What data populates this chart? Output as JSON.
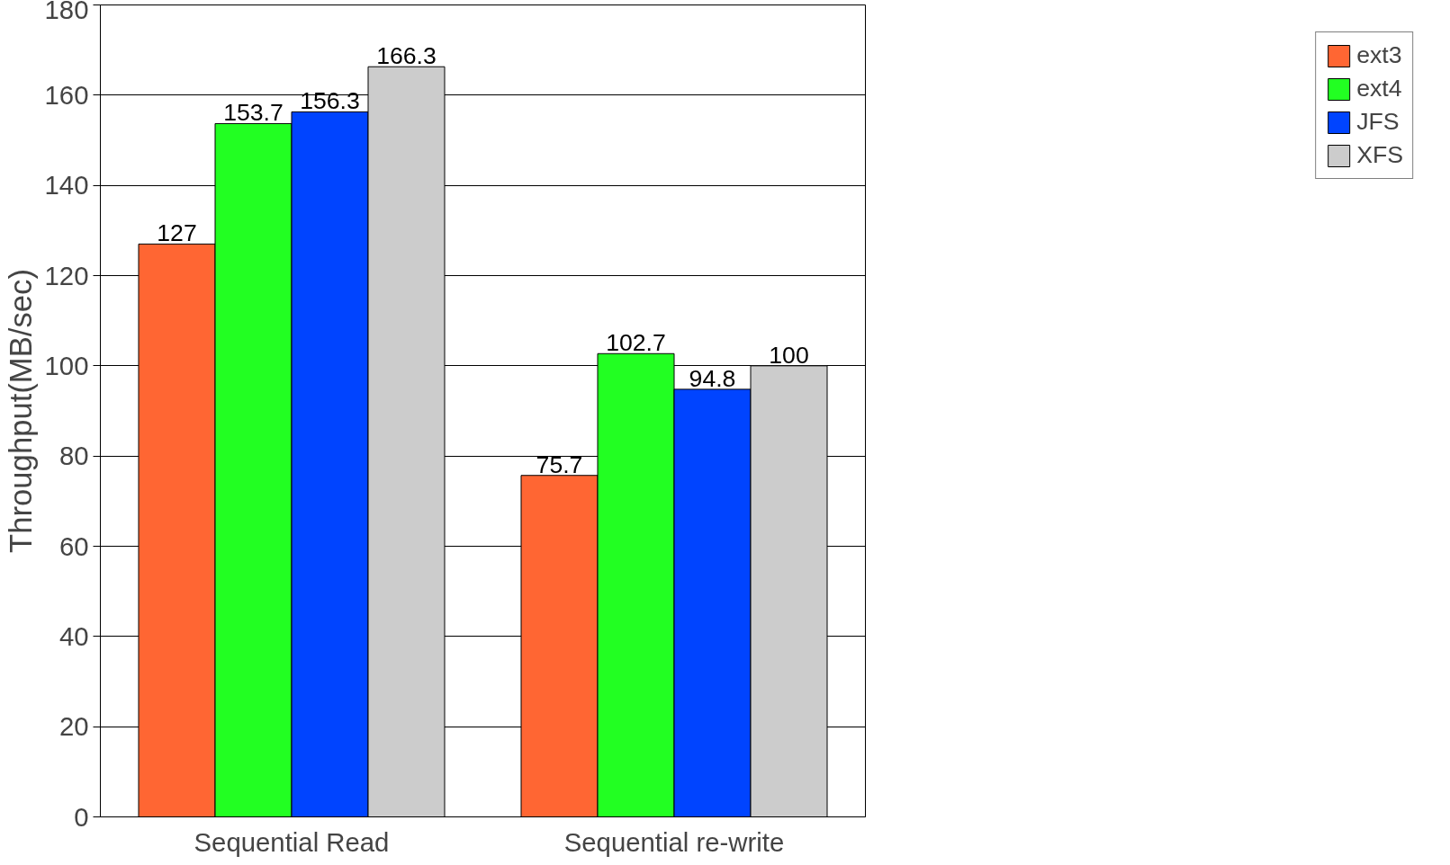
{
  "chart_data": {
    "type": "bar",
    "ylabel": "Throughput(MB/sec)",
    "categories": [
      "Sequential Read",
      "Sequential re-write"
    ],
    "series": [
      {
        "name": "ext3",
        "color": "#ff6633",
        "values": [
          127,
          75.7
        ]
      },
      {
        "name": "ext4",
        "color": "#22ff22",
        "values": [
          153.7,
          102.7
        ]
      },
      {
        "name": "JFS",
        "color": "#0044ff",
        "values": [
          156.3,
          94.8
        ]
      },
      {
        "name": "XFS",
        "color": "#cccccc",
        "values": [
          166.3,
          100
        ]
      }
    ],
    "ylim": [
      0,
      180
    ],
    "yticks": [
      0,
      20,
      40,
      60,
      80,
      100,
      120,
      140,
      160,
      180
    ],
    "grid": "y",
    "legend": "right",
    "data_labels": true
  }
}
